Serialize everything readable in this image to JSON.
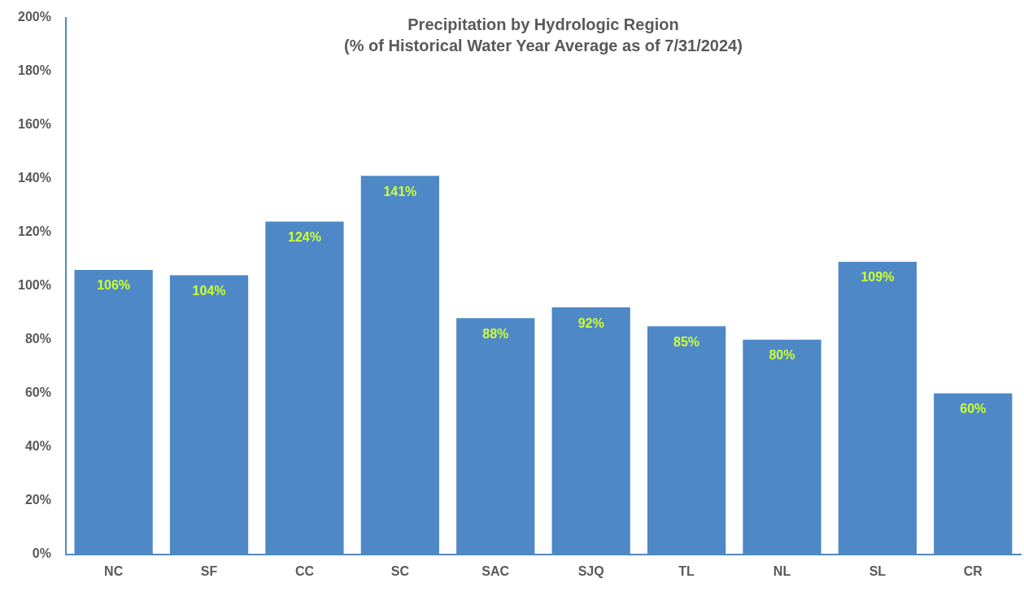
{
  "chart_data": {
    "type": "bar",
    "title": "Precipitation by Hydrologic Region",
    "subtitle": "(% of Historical Water Year Average as of 7/31/2024)",
    "categories": [
      "NC",
      "SF",
      "CC",
      "SC",
      "SAC",
      "SJQ",
      "TL",
      "NL",
      "SL",
      "CR"
    ],
    "values": [
      106,
      104,
      124,
      141,
      88,
      92,
      85,
      80,
      109,
      60
    ],
    "value_labels": [
      "106%",
      "104%",
      "124%",
      "141%",
      "88%",
      "92%",
      "85%",
      "80%",
      "109%",
      "60%"
    ],
    "color": "#4f88c6",
    "grid": false,
    "legend": false,
    "ylim": [
      0,
      200
    ],
    "yticks": [
      {
        "value": 0,
        "label": "0%"
      },
      {
        "value": 20,
        "label": "20%"
      },
      {
        "value": 40,
        "label": "40%"
      },
      {
        "value": 60,
        "label": "60%"
      },
      {
        "value": 80,
        "label": "80%"
      },
      {
        "value": 100,
        "label": "100%"
      },
      {
        "value": 120,
        "label": "120%"
      },
      {
        "value": 140,
        "label": "140%"
      },
      {
        "value": 160,
        "label": "160%"
      },
      {
        "value": 180,
        "label": "180%"
      },
      {
        "value": 200,
        "label": "200%"
      }
    ]
  }
}
